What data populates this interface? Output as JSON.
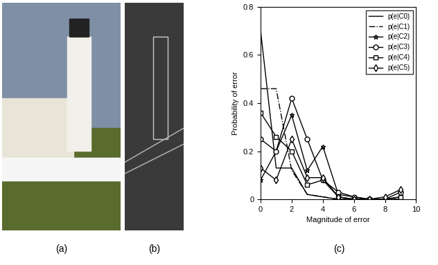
{
  "chart_data": {
    "type": "line",
    "x_label": "Magnitude of error",
    "y_label": "Probability of error",
    "x": [
      0,
      1,
      2,
      3,
      4,
      5,
      6,
      7,
      8,
      9
    ],
    "xlim": [
      0,
      10
    ],
    "xticks": [
      0,
      2,
      4,
      6,
      8,
      10
    ],
    "ylim": [
      0,
      0.8
    ],
    "yticks": [
      0,
      0.2,
      0.4,
      0.6,
      0.8
    ],
    "legend": "upper right",
    "series": [
      {
        "name": "p(e|C0)",
        "color": "#000000",
        "marker": "none",
        "line_style": "solid",
        "values": [
          0.7,
          0.13,
          0.13,
          0.02,
          0.01,
          0.0,
          0.0,
          0.0,
          0.0,
          0.0
        ]
      },
      {
        "name": "p(e|C1)",
        "color": "#000000",
        "marker": "none",
        "line_style": "dashdot",
        "values": [
          0.46,
          0.46,
          0.12,
          0.02,
          0.01,
          0.0,
          0.0,
          0.0,
          0.0,
          0.0
        ]
      },
      {
        "name": "p(e|C2)",
        "color": "#000000",
        "marker": "star",
        "line_style": "solid",
        "values": [
          0.08,
          0.2,
          0.35,
          0.12,
          0.22,
          0.02,
          0.01,
          0.0,
          0.0,
          0.01
        ]
      },
      {
        "name": "p(e|C3)",
        "color": "#000000",
        "marker": "circle",
        "line_style": "solid",
        "values": [
          0.25,
          0.2,
          0.42,
          0.25,
          0.08,
          0.03,
          0.01,
          0.0,
          0.0,
          0.03
        ]
      },
      {
        "name": "p(e|C4)",
        "color": "#000000",
        "marker": "square",
        "line_style": "solid",
        "values": [
          0.36,
          0.26,
          0.2,
          0.06,
          0.08,
          0.01,
          0.0,
          0.0,
          0.0,
          0.01
        ]
      },
      {
        "name": "p(e|C5)",
        "color": "#000000",
        "marker": "diamond",
        "line_style": "solid",
        "values": [
          0.13,
          0.08,
          0.25,
          0.09,
          0.09,
          0.01,
          0.0,
          0.0,
          0.01,
          0.04
        ]
      }
    ]
  },
  "panel_labels": [
    "(a)",
    "(b)",
    "(c)"
  ]
}
